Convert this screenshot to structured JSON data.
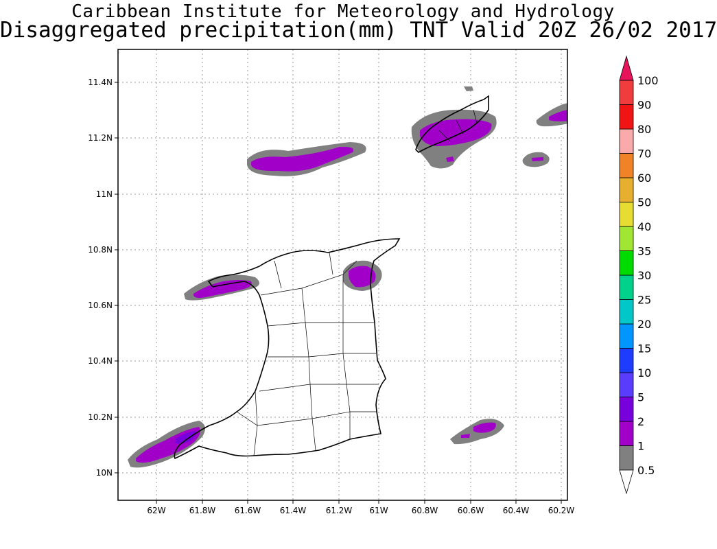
{
  "header": {
    "institute": "Caribbean Institute for Meteorology and Hydrology",
    "product": "Disaggregated precipitation(mm) TNT Valid 20Z 26/02 2017"
  },
  "map": {
    "region": "TNT",
    "lat_ticks": [
      "11.4N",
      "11.2N",
      "11N",
      "10.8N",
      "10.6N",
      "10.4N",
      "10.2N",
      "10N"
    ],
    "lon_ticks": [
      "62W",
      "61.8W",
      "61.6W",
      "61.4W",
      "61.2W",
      "61W",
      "60.8W",
      "60.6W",
      "60.4W",
      "60.2W"
    ],
    "grid": "dotted"
  },
  "legend": {
    "levels": [
      {
        "label": "0.5",
        "color": "#ffffff"
      },
      {
        "label": "1",
        "color": "#808080"
      },
      {
        "label": "2",
        "color": "#a000c8"
      },
      {
        "label": "5",
        "color": "#7800dc"
      },
      {
        "label": "10",
        "color": "#5a3cff"
      },
      {
        "label": "15",
        "color": "#1e3cff"
      },
      {
        "label": "20",
        "color": "#0096ff"
      },
      {
        "label": "25",
        "color": "#00c8c8"
      },
      {
        "label": "30",
        "color": "#00d28c"
      },
      {
        "label": "35",
        "color": "#00dc00"
      },
      {
        "label": "40",
        "color": "#a0e632"
      },
      {
        "label": "50",
        "color": "#e6dc32"
      },
      {
        "label": "60",
        "color": "#e6af2d"
      },
      {
        "label": "70",
        "color": "#f08228"
      },
      {
        "label": "80",
        "color": "#faaaaa"
      },
      {
        "label": "90",
        "color": "#f01414"
      },
      {
        "label": "100",
        "color": "#f03c3c"
      }
    ],
    "overflow_color": "#e6145a"
  }
}
